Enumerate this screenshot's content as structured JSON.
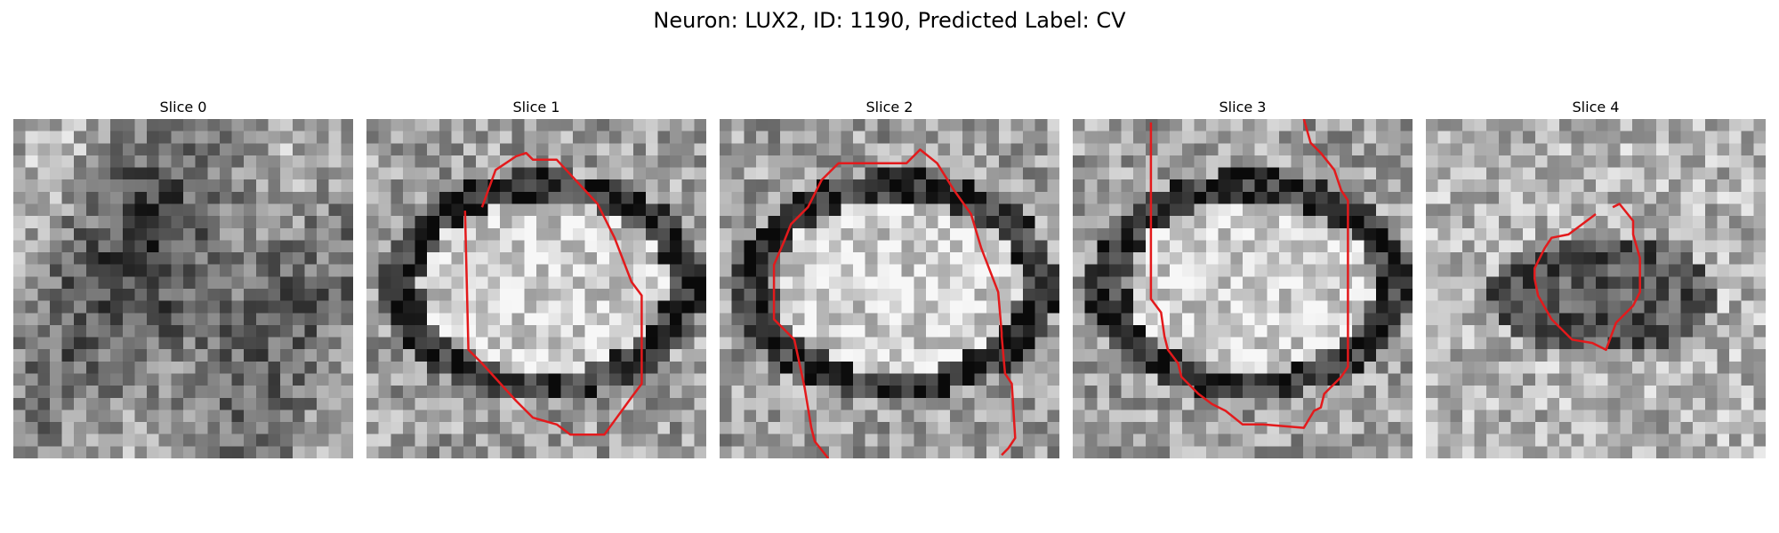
{
  "figure": {
    "title": "Neuron: LUX2, ID: 1190, Predicted Label: CV"
  },
  "slices": [
    {
      "label": "Slice 0",
      "seed": 11,
      "pattern": "diffuse",
      "has_contour": false,
      "contour": []
    },
    {
      "label": "Slice 1",
      "seed": 23,
      "pattern": "oval_dark_ring",
      "has_contour": true,
      "contour": [
        [
          0.34,
          0.26
        ],
        [
          0.38,
          0.15
        ],
        [
          0.41,
          0.13
        ],
        [
          0.44,
          0.11
        ],
        [
          0.47,
          0.1
        ],
        [
          0.49,
          0.12
        ],
        [
          0.56,
          0.12
        ],
        [
          0.68,
          0.25
        ],
        [
          0.73,
          0.35
        ],
        [
          0.78,
          0.48
        ],
        [
          0.81,
          0.52
        ],
        [
          0.81,
          0.78
        ],
        [
          0.78,
          0.82
        ],
        [
          0.7,
          0.93
        ],
        [
          0.6,
          0.93
        ],
        [
          0.56,
          0.9
        ],
        [
          0.49,
          0.88
        ],
        [
          0.44,
          0.83
        ],
        [
          0.34,
          0.72
        ],
        [
          0.3,
          0.68
        ],
        [
          0.29,
          0.27
        ]
      ]
    },
    {
      "label": "Slice 2",
      "seed": 37,
      "pattern": "oval_dark_ring",
      "has_contour": true,
      "contour": [
        [
          0.32,
          1.0
        ],
        [
          0.28,
          0.95
        ],
        [
          0.27,
          0.91
        ],
        [
          0.25,
          0.79
        ],
        [
          0.22,
          0.65
        ],
        [
          0.16,
          0.59
        ],
        [
          0.16,
          0.43
        ],
        [
          0.19,
          0.36
        ],
        [
          0.21,
          0.31
        ],
        [
          0.26,
          0.26
        ],
        [
          0.3,
          0.18
        ],
        [
          0.35,
          0.13
        ],
        [
          0.55,
          0.13
        ],
        [
          0.59,
          0.09
        ],
        [
          0.64,
          0.13
        ],
        [
          0.69,
          0.21
        ],
        [
          0.74,
          0.28
        ],
        [
          0.77,
          0.38
        ],
        [
          0.82,
          0.51
        ],
        [
          0.83,
          0.63
        ],
        [
          0.83,
          0.64
        ],
        [
          0.84,
          0.75
        ],
        [
          0.86,
          0.78
        ],
        [
          0.87,
          0.94
        ],
        [
          0.85,
          0.97
        ],
        [
          0.83,
          0.99
        ]
      ]
    },
    {
      "label": "Slice 3",
      "seed": 41,
      "pattern": "oval_dark_ring",
      "has_contour": true,
      "contour": [
        [
          0.23,
          0.01
        ],
        [
          0.23,
          0.53
        ],
        [
          0.26,
          0.57
        ],
        [
          0.27,
          0.64
        ],
        [
          0.28,
          0.68
        ],
        [
          0.31,
          0.72
        ],
        [
          0.32,
          0.76
        ],
        [
          0.37,
          0.81
        ],
        [
          0.41,
          0.84
        ],
        [
          0.45,
          0.86
        ],
        [
          0.5,
          0.9
        ],
        [
          0.56,
          0.9
        ],
        [
          0.68,
          0.91
        ],
        [
          0.71,
          0.86
        ],
        [
          0.73,
          0.85
        ],
        [
          0.74,
          0.81
        ],
        [
          0.79,
          0.76
        ],
        [
          0.81,
          0.73
        ],
        [
          0.81,
          0.24
        ],
        [
          0.79,
          0.21
        ],
        [
          0.77,
          0.15
        ],
        [
          0.73,
          0.1
        ],
        [
          0.7,
          0.07
        ],
        [
          0.68,
          0.0
        ]
      ]
    },
    {
      "label": "Slice 4",
      "seed": 53,
      "pattern": "small_dark_blob",
      "has_contour": true,
      "contour": [
        [
          0.55,
          0.26
        ],
        [
          0.57,
          0.25
        ],
        [
          0.61,
          0.3
        ],
        [
          0.61,
          0.34
        ],
        [
          0.63,
          0.41
        ],
        [
          0.63,
          0.51
        ],
        [
          0.61,
          0.55
        ],
        [
          0.56,
          0.6
        ],
        [
          0.53,
          0.68
        ],
        [
          0.49,
          0.66
        ],
        [
          0.43,
          0.65
        ],
        [
          0.37,
          0.59
        ],
        [
          0.33,
          0.52
        ],
        [
          0.32,
          0.47
        ],
        [
          0.32,
          0.44
        ],
        [
          0.35,
          0.38
        ],
        [
          0.37,
          0.35
        ],
        [
          0.42,
          0.34
        ],
        [
          0.5,
          0.28
        ]
      ]
    }
  ],
  "colors": {
    "contour": "#e31a1c"
  }
}
